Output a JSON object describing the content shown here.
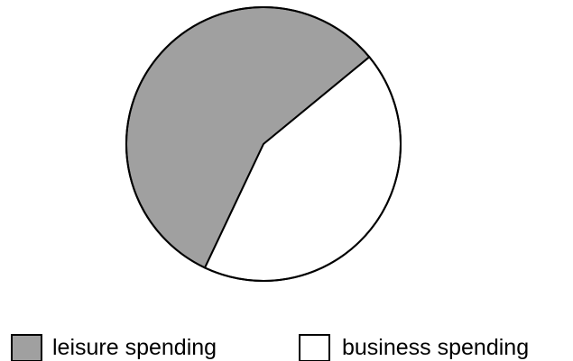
{
  "chart_data": {
    "type": "pie",
    "title": "",
    "slices": [
      {
        "label": "leisure spending",
        "value": 57,
        "color": "#a0a0a0"
      },
      {
        "label": "business spending",
        "value": 43,
        "color": "#ffffff"
      }
    ],
    "legend_position": "bottom",
    "start_angle_deg": 39.5,
    "direction": "counterclockwise"
  }
}
